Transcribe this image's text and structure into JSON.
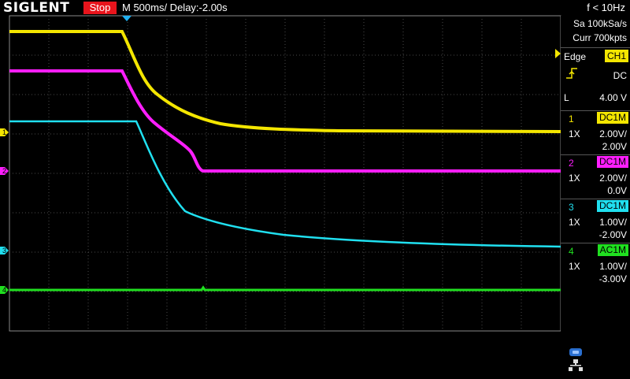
{
  "header": {
    "logo": "SIGLENT",
    "status": "Stop",
    "timebase": "M 500ms/  Delay:-2.00s",
    "freq": "f < 10Hz"
  },
  "acquisition": {
    "sample_rate": "Sa 100kSa/s",
    "memory": "Curr 700kpts"
  },
  "trigger": {
    "type": "Edge",
    "source": "CH1",
    "coupling": "DC",
    "level_label": "L",
    "level": "4.00 V"
  },
  "channels": [
    {
      "num": "1",
      "coupling": "DC1M",
      "probe": "1X",
      "vdiv": "2.00V/",
      "offset": "2.00V",
      "color": "#f4e600"
    },
    {
      "num": "2",
      "coupling": "DC1M",
      "probe": "1X",
      "vdiv": "2.00V/",
      "offset": "0.0V",
      "color": "#ff1eff"
    },
    {
      "num": "3",
      "coupling": "DC1M",
      "probe": "1X",
      "vdiv": "1.00V/",
      "offset": "-2.00V",
      "color": "#20e0f0"
    },
    {
      "num": "4",
      "coupling": "AC1M",
      "probe": "1X",
      "vdiv": "1.00V/",
      "offset": "-3.00V",
      "color": "#20e020"
    }
  ],
  "icons": {
    "usb": "usb-icon",
    "network": "network-icon",
    "trigger_slope": "rising-edge-icon"
  }
}
